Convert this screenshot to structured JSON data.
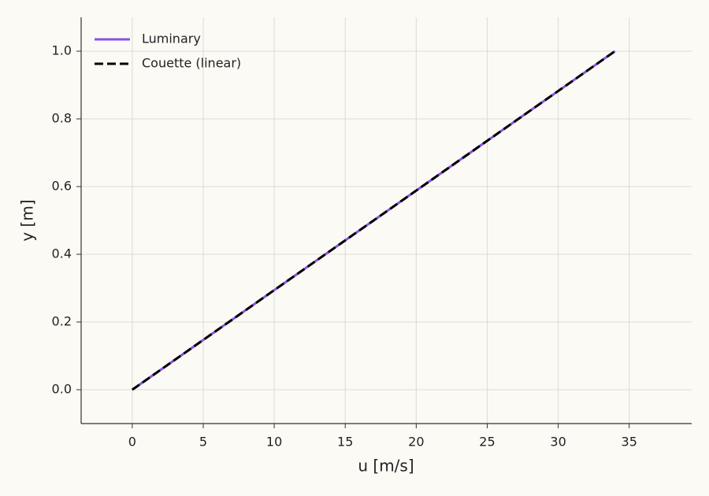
{
  "chart_data": {
    "type": "line",
    "xlabel": "u [m/s]",
    "ylabel": "y [m]",
    "x": [
      0,
      34
    ],
    "series": [
      {
        "name": "Luminary",
        "color": "#8b4fe8",
        "style": "solid",
        "values": [
          0,
          1
        ]
      },
      {
        "name": "Couette (linear)",
        "color": "#000000",
        "style": "dashed",
        "values": [
          0,
          1
        ]
      }
    ],
    "xlim": [
      -3.6,
      39.4
    ],
    "ylim": [
      -0.1,
      1.1
    ],
    "xticks": [
      0,
      5,
      10,
      15,
      20,
      25,
      30,
      35
    ],
    "yticks": [
      {
        "value": 0,
        "label": "0.0"
      },
      0.2,
      0.4,
      0.6,
      0.8,
      {
        "value": 1,
        "label": "1.0"
      }
    ],
    "grid": true,
    "legend": "upper-left"
  }
}
